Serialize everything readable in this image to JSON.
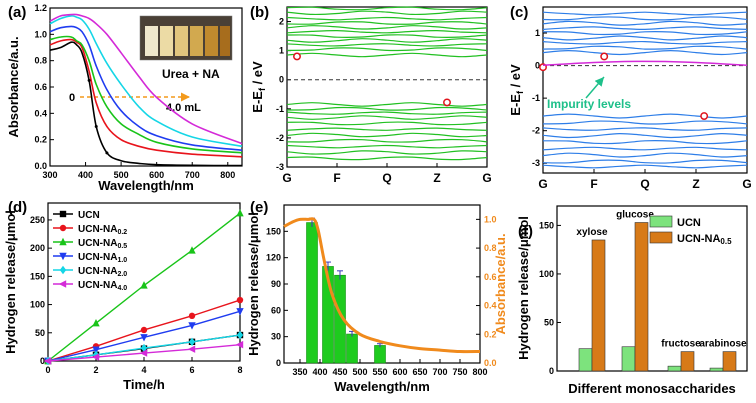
{
  "chart_data": [
    {
      "panel": "(a)",
      "type": "line",
      "xlabel": "Wavelength/nm",
      "ylabel": "Absorbance/a.u.",
      "xlim": [
        300,
        840
      ],
      "ylim": [
        0,
        1.2
      ],
      "xticks": [
        300,
        400,
        500,
        600,
        700,
        800
      ],
      "yticks": [
        0.0,
        0.2,
        0.4,
        0.6,
        0.8,
        1.0,
        1.2
      ],
      "annotations": [
        "Urea + NA",
        "0",
        "4.0 mL"
      ],
      "series": [
        {
          "color": "#000000",
          "x": [
            300,
            330,
            360,
            375,
            390,
            410,
            430,
            460,
            500,
            550,
            600,
            700,
            840
          ],
          "y": [
            0.88,
            0.9,
            0.94,
            0.92,
            0.86,
            0.65,
            0.3,
            0.1,
            0.04,
            0.02,
            0.01,
            0.005,
            0.003
          ]
        },
        {
          "color": "#e8141c",
          "x": [
            300,
            330,
            360,
            375,
            390,
            410,
            430,
            460,
            500,
            550,
            600,
            700,
            840
          ],
          "y": [
            0.92,
            0.95,
            0.96,
            0.94,
            0.9,
            0.72,
            0.48,
            0.3,
            0.2,
            0.15,
            0.12,
            0.09,
            0.07
          ]
        },
        {
          "color": "#19c419",
          "x": [
            300,
            330,
            360,
            375,
            390,
            410,
            430,
            460,
            500,
            550,
            600,
            700,
            840
          ],
          "y": [
            0.96,
            0.98,
            0.98,
            0.95,
            0.92,
            0.8,
            0.62,
            0.45,
            0.32,
            0.24,
            0.18,
            0.13,
            0.1
          ]
        },
        {
          "color": "#1f3cf0",
          "x": [
            300,
            330,
            360,
            375,
            390,
            410,
            430,
            460,
            500,
            550,
            600,
            700,
            840
          ],
          "y": [
            1.02,
            1.05,
            1.06,
            1.05,
            1.02,
            0.92,
            0.76,
            0.58,
            0.42,
            0.3,
            0.23,
            0.16,
            0.12
          ]
        },
        {
          "color": "#15d6e6",
          "x": [
            300,
            330,
            360,
            375,
            390,
            410,
            430,
            460,
            500,
            550,
            600,
            700,
            840
          ],
          "y": [
            1.08,
            1.12,
            1.14,
            1.13,
            1.11,
            1.04,
            0.93,
            0.78,
            0.62,
            0.45,
            0.34,
            0.22,
            0.15
          ]
        },
        {
          "color": "#d42ad8",
          "x": [
            300,
            330,
            360,
            375,
            390,
            410,
            430,
            460,
            500,
            550,
            600,
            700,
            840
          ],
          "y": [
            1.1,
            1.14,
            1.15,
            1.15,
            1.14,
            1.12,
            1.08,
            1.0,
            0.86,
            0.68,
            0.52,
            0.32,
            0.17
          ]
        }
      ]
    },
    {
      "panel": "(b)",
      "type": "line",
      "ylabel": "E-Ef / eV",
      "xticklabels": [
        "G",
        "F",
        "Q",
        "Z",
        "G"
      ],
      "ylim": [
        -3,
        2.5
      ],
      "yticks": [
        -3,
        -2,
        -1,
        0,
        1,
        2
      ],
      "conduction_bands": [
        0.85,
        1.05,
        1.2,
        1.35,
        1.5,
        1.65,
        1.8,
        1.95,
        2.1,
        2.3,
        2.45
      ],
      "valence_bands": [
        -0.85,
        -1.0,
        -1.15,
        -1.3,
        -1.5,
        -1.7,
        -1.9,
        -2.1,
        -2.3,
        -2.5,
        -2.7
      ],
      "markers": [
        {
          "x": 0.05,
          "y": 0.8
        },
        {
          "x": 0.8,
          "y": -0.78
        }
      ]
    },
    {
      "panel": "(c)",
      "type": "line",
      "ylabel": "E-Ef / eV",
      "xticklabels": [
        "G",
        "F",
        "Q",
        "Z",
        "G"
      ],
      "ylim": [
        -3.3,
        1.8
      ],
      "yticks": [
        -3,
        -2,
        -1,
        0,
        1
      ],
      "annotation": "Impurity levels",
      "conduction_bands": [
        0.4,
        0.55,
        0.7,
        0.85,
        1.0,
        1.15,
        1.3,
        1.45,
        1.6
      ],
      "valence_bands": [
        -1.55,
        -1.75,
        -1.95,
        -2.15,
        -2.35,
        -2.55,
        -2.75,
        -2.95,
        -3.1
      ],
      "markers": [
        {
          "x": 0.0,
          "y": -0.05
        },
        {
          "x": 0.3,
          "y": 0.28
        },
        {
          "x": 0.79,
          "y": -1.55
        }
      ]
    },
    {
      "panel": "(d)",
      "type": "line",
      "xlabel": "Time/h",
      "ylabel": "Hydrogen release/μmol",
      "xlim": [
        0,
        8
      ],
      "ylim": [
        0,
        280
      ],
      "xticks": [
        0,
        2,
        4,
        6,
        8
      ],
      "yticks": [
        0,
        50,
        100,
        150,
        200,
        250
      ],
      "x": [
        0,
        2,
        4,
        6,
        8
      ],
      "series": [
        {
          "name": "UCN",
          "sub": "",
          "color": "#000000",
          "marker": "square",
          "values": [
            0,
            11,
            22,
            34,
            46
          ]
        },
        {
          "name": "UCN-NA",
          "sub": "0.2",
          "color": "#e8141c",
          "marker": "circle",
          "values": [
            0,
            26,
            55,
            80,
            108
          ]
        },
        {
          "name": "UCN-NA",
          "sub": "0.5",
          "color": "#19c419",
          "marker": "triangle",
          "values": [
            0,
            67,
            134,
            196,
            262
          ]
        },
        {
          "name": "UCN-NA",
          "sub": "1.0",
          "color": "#1f3cf0",
          "marker": "triangle-down",
          "values": [
            0,
            20,
            42,
            63,
            88
          ]
        },
        {
          "name": "UCN-NA",
          "sub": "2.0",
          "color": "#15d6e6",
          "marker": "diamond",
          "values": [
            0,
            11,
            23,
            34,
            46
          ]
        },
        {
          "name": "UCN-NA",
          "sub": "4.0",
          "color": "#d42ad8",
          "marker": "triangle-left",
          "values": [
            0,
            7,
            14,
            21,
            29
          ]
        }
      ]
    },
    {
      "panel": "(e)",
      "type": "bar",
      "xlabel": "Wavelength/nm",
      "ylabel": "Hydrogen release/μmol",
      "ylabel2": "Absorbance/a.u.",
      "xlim": [
        310,
        800
      ],
      "ylim": [
        0,
        180
      ],
      "ylim2": [
        0,
        1.1
      ],
      "xticks": [
        350,
        400,
        450,
        500,
        550,
        600,
        650,
        700,
        750,
        800
      ],
      "yticks": [
        0,
        30,
        60,
        90,
        120,
        150
      ],
      "yticks2": [
        0.0,
        0.2,
        0.4,
        0.6,
        0.8,
        1.0
      ],
      "bars": {
        "x": [
          380,
          420,
          450,
          480,
          550
        ],
        "values": [
          160,
          110,
          100,
          33,
          20
        ],
        "errors": [
          5,
          5,
          5,
          3,
          2
        ]
      },
      "absorbance": {
        "x": [
          310,
          330,
          350,
          370,
          385,
          395,
          410,
          430,
          460,
          500,
          550,
          600,
          650,
          700,
          750,
          800
        ],
        "y": [
          0.95,
          0.98,
          1.0,
          1.0,
          1.0,
          0.93,
          0.72,
          0.48,
          0.3,
          0.2,
          0.15,
          0.12,
          0.1,
          0.09,
          0.08,
          0.08
        ]
      }
    },
    {
      "panel": "(f)",
      "type": "bar",
      "xlabel": "Different monosaccharides",
      "ylabel": "Hydrogen release/μmol",
      "ylim": [
        0,
        170
      ],
      "yticks": [
        0,
        50,
        100,
        150
      ],
      "categories": [
        "xylose",
        "glucose",
        "fructose",
        "arabinose"
      ],
      "series": [
        {
          "name": "UCN",
          "sub": "",
          "color": "#7de37d",
          "values": [
            23,
            25,
            5,
            3
          ]
        },
        {
          "name": "UCN-NA",
          "sub": "0.5",
          "color": "#d77a18",
          "values": [
            135,
            153,
            20,
            20
          ]
        }
      ]
    }
  ]
}
